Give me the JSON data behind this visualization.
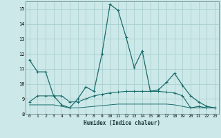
{
  "xlabel": "Humidex (Indice chaleur)",
  "bg_color": "#cce8e8",
  "grid_color": "#aacfcf",
  "line_color": "#1a6b6b",
  "xlim": [
    -0.5,
    23.5
  ],
  "ylim": [
    8,
    15.5
  ],
  "yticks": [
    8,
    9,
    10,
    11,
    12,
    13,
    14,
    15
  ],
  "xticks": [
    0,
    1,
    2,
    3,
    4,
    5,
    6,
    7,
    8,
    9,
    10,
    11,
    12,
    13,
    14,
    15,
    16,
    17,
    18,
    19,
    20,
    21,
    22,
    23
  ],
  "series1_x": [
    0,
    1,
    2,
    3,
    4,
    5,
    6,
    7,
    8,
    9,
    10,
    11,
    12,
    13,
    14,
    15,
    16,
    17,
    18,
    19,
    20,
    21,
    22,
    23
  ],
  "series1_y": [
    11.6,
    10.8,
    10.8,
    9.2,
    8.6,
    8.4,
    9.0,
    9.8,
    9.5,
    12.0,
    15.3,
    14.9,
    13.1,
    11.1,
    12.2,
    9.5,
    9.6,
    10.1,
    10.7,
    9.9,
    9.2,
    8.8,
    8.5,
    8.4
  ],
  "series2_x": [
    0,
    1,
    2,
    3,
    4,
    5,
    6,
    7,
    8,
    9,
    10,
    11,
    12,
    13,
    14,
    15,
    16,
    17,
    18,
    19,
    20,
    21,
    22,
    23
  ],
  "series2_y": [
    8.8,
    9.2,
    9.2,
    9.2,
    9.2,
    8.8,
    8.8,
    9.0,
    9.2,
    9.3,
    9.4,
    9.45,
    9.5,
    9.5,
    9.5,
    9.5,
    9.5,
    9.45,
    9.4,
    9.2,
    8.4,
    8.5,
    8.4,
    8.4
  ],
  "series3_x": [
    0,
    1,
    2,
    3,
    4,
    5,
    6,
    7,
    8,
    9,
    10,
    11,
    12,
    13,
    14,
    15,
    16,
    17,
    18,
    19,
    20,
    21,
    22,
    23
  ],
  "series3_y": [
    8.6,
    8.6,
    8.6,
    8.6,
    8.5,
    8.4,
    8.4,
    8.45,
    8.5,
    8.55,
    8.6,
    8.65,
    8.65,
    8.65,
    8.65,
    8.65,
    8.65,
    8.65,
    8.6,
    8.5,
    8.4,
    8.4,
    8.4,
    8.4
  ]
}
